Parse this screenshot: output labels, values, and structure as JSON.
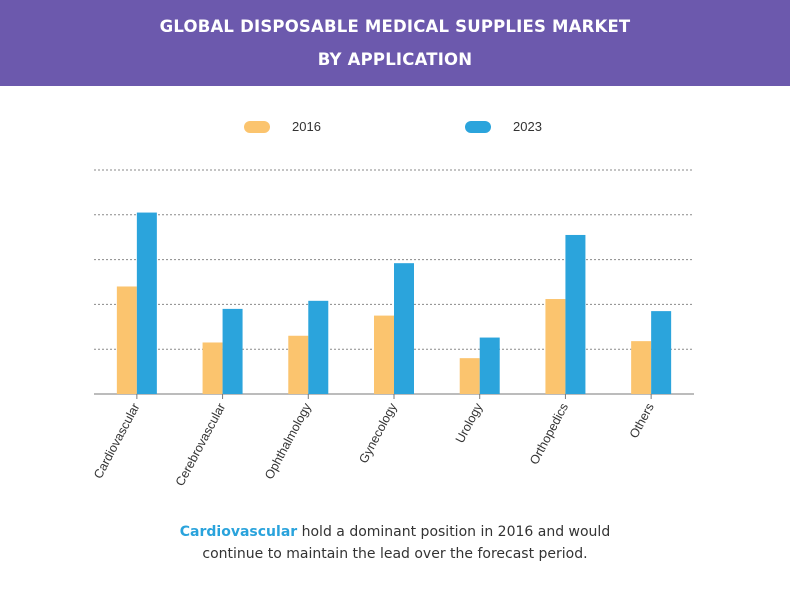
{
  "header": {
    "title_line1": "GLOBAL DISPOSABLE MEDICAL SUPPLIES MARKET",
    "title_line2": "BY APPLICATION"
  },
  "caption": {
    "highlight": "Cardiovascular",
    "line1_rest": " hold a dominant position in 2016 and would",
    "line2": "continue to maintain the lead over the forecast period."
  },
  "colors": {
    "header_bg": "#6c59ad",
    "series_2016": "#fbc46e",
    "series_2023": "#2ba4dc",
    "highlight": "#2aa3dc"
  },
  "chart_data": {
    "type": "bar",
    "title": "GLOBAL DISPOSABLE MEDICAL SUPPLIES MARKET BY APPLICATION",
    "xlabel": "",
    "ylabel": "",
    "ylim": [
      0,
      5
    ],
    "grid": true,
    "legend_position": "top",
    "categories": [
      "Cardiovascular",
      "Cerebrovascular",
      "Ophthalmology",
      "Gynecology",
      "Urology",
      "Orthopedics",
      "Others"
    ],
    "series": [
      {
        "name": "2016",
        "color": "#fbc46e",
        "values": [
          2.4,
          1.15,
          1.3,
          1.75,
          0.8,
          2.12,
          1.18
        ]
      },
      {
        "name": "2023",
        "color": "#2ba4dc",
        "values": [
          4.05,
          1.9,
          2.08,
          2.92,
          1.26,
          3.55,
          1.85
        ]
      }
    ]
  }
}
